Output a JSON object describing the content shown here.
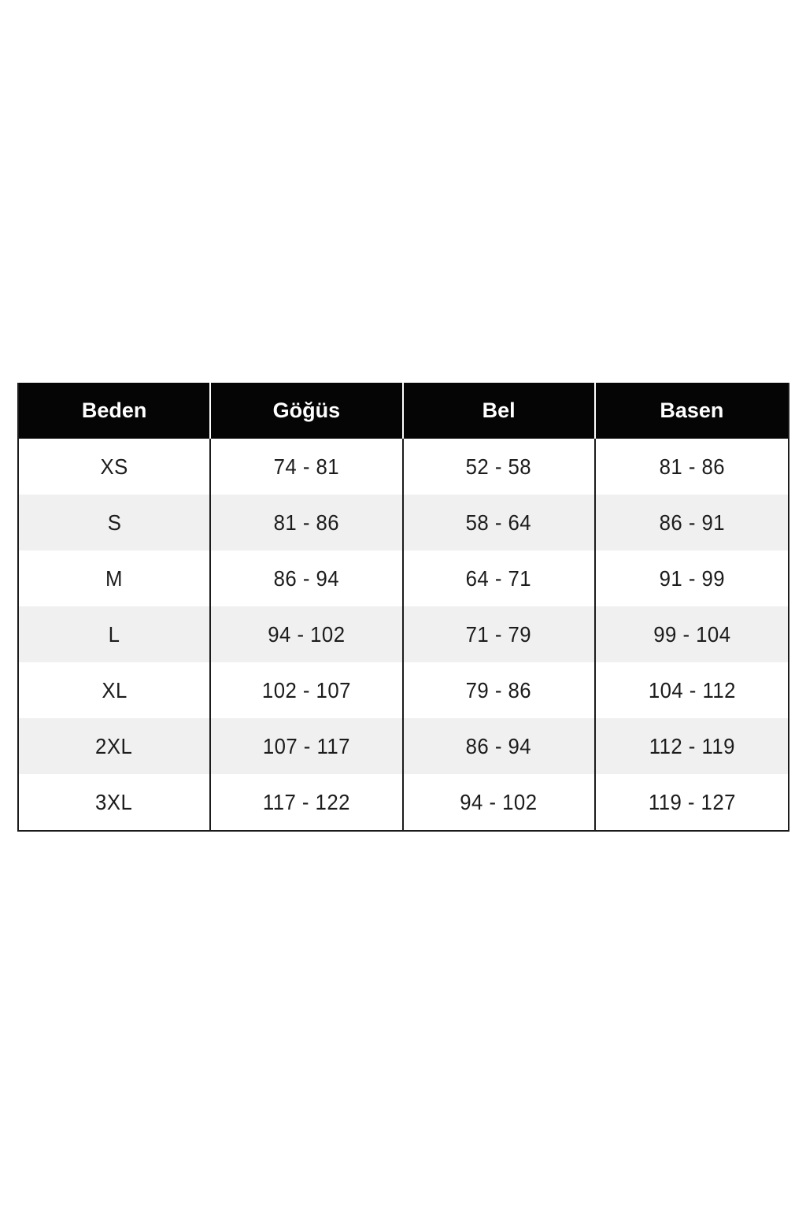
{
  "table": {
    "columns": [
      "Beden",
      "Göğüs",
      "Bel",
      "Basen"
    ],
    "rows": [
      {
        "size": "XS",
        "chest": "74 - 81",
        "waist": "52 - 58",
        "hips": "81 - 86"
      },
      {
        "size": "S",
        "chest": "81 - 86",
        "waist": "58 - 64",
        "hips": "86 - 91"
      },
      {
        "size": "M",
        "chest": "86 - 94",
        "waist": "64 - 71",
        "hips": "91 - 99"
      },
      {
        "size": "L",
        "chest": "94 - 102",
        "waist": "71 - 79",
        "hips": "99 - 104"
      },
      {
        "size": "XL",
        "chest": "102 - 107",
        "waist": "79 - 86",
        "hips": "104 - 112"
      },
      {
        "size": "2XL",
        "chest": "107 - 117",
        "waist": "86 - 94",
        "hips": "112 - 119"
      },
      {
        "size": "3XL",
        "chest": "117 - 122",
        "waist": "94 - 102",
        "hips": "119 - 127"
      }
    ],
    "colors": {
      "header_bg": "#050505",
      "header_text": "#ffffff",
      "row_alt_bg": "#f0f0f0",
      "row_plain_bg": "#ffffff",
      "body_text": "#1c1c1c",
      "border": "#1b1b1b",
      "header_divider": "#ffffff"
    }
  },
  "chart_data": {
    "type": "table",
    "title": "",
    "columns": [
      "Beden",
      "Göğüs",
      "Bel",
      "Basen"
    ],
    "rows": [
      [
        "XS",
        "74 - 81",
        "52 - 58",
        "81 - 86"
      ],
      [
        "S",
        "81 - 86",
        "58 - 64",
        "86 - 91"
      ],
      [
        "M",
        "86 - 94",
        "64 - 71",
        "91 - 99"
      ],
      [
        "L",
        "94 - 102",
        "71 - 79",
        "99 - 104"
      ],
      [
        "XL",
        "102 - 107",
        "79 - 86",
        "104 - 112"
      ],
      [
        "2XL",
        "107 - 117",
        "86 - 94",
        "112 - 119"
      ],
      [
        "3XL",
        "117 - 122",
        "94 - 102",
        "119 - 127"
      ]
    ]
  }
}
